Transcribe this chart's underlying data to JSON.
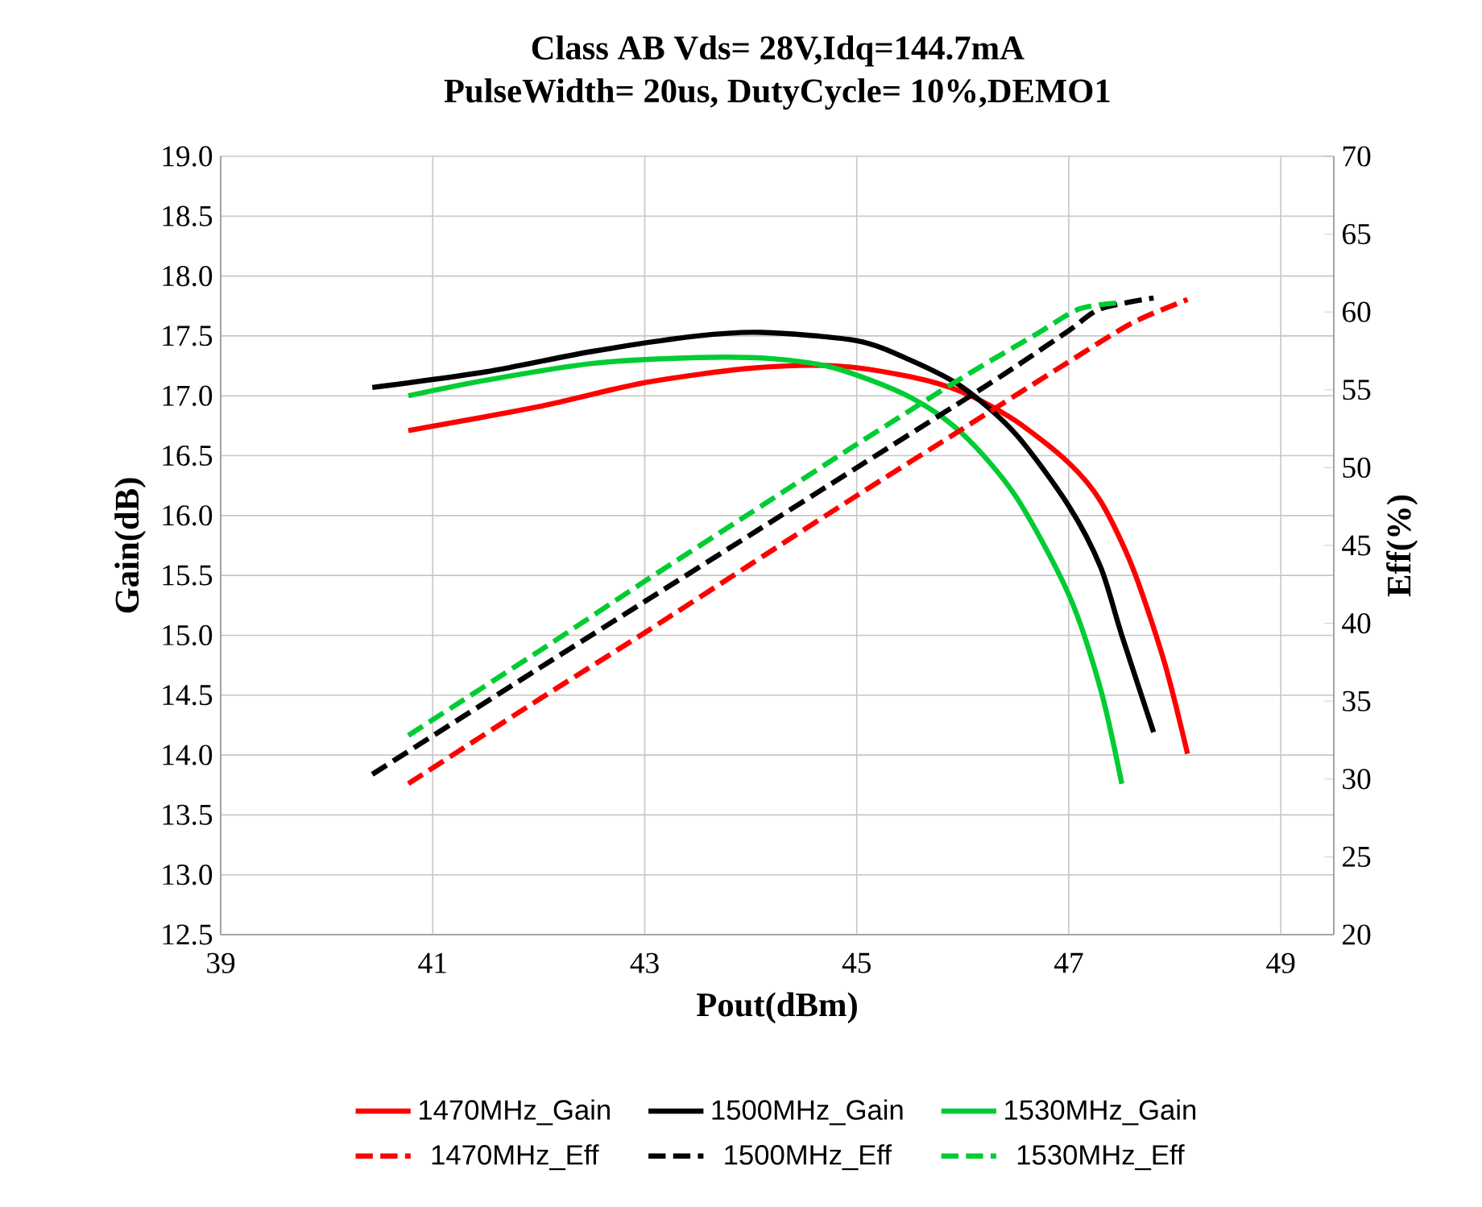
{
  "chart_data": {
    "type": "line",
    "title": "Class AB Vds= 28V,Idq=144.7mA",
    "subtitle": "PulseWidth= 20us, DutyCycle= 10%,DEMO1",
    "xlabel": "Pout(dBm)",
    "ylabel": "Gain(dB)",
    "y2label": "Eff(%)",
    "xlim": [
      39,
      49.5
    ],
    "xticks": [
      39,
      41,
      43,
      45,
      47,
      49
    ],
    "ylim": [
      12.5,
      19
    ],
    "yticks": [
      {
        "value": 12.5,
        "label": "12.5"
      },
      {
        "value": 13,
        "label": "13.0"
      },
      {
        "value": 13.5,
        "label": "13.5"
      },
      {
        "value": 14,
        "label": "14.0"
      },
      {
        "value": 14.5,
        "label": "14.5"
      },
      {
        "value": 15,
        "label": "15.0"
      },
      {
        "value": 15.5,
        "label": "15.5"
      },
      {
        "value": 16,
        "label": "16.0"
      },
      {
        "value": 16.5,
        "label": "16.5"
      },
      {
        "value": 17,
        "label": "17.0"
      },
      {
        "value": 17.5,
        "label": "17.5"
      },
      {
        "value": 18,
        "label": "18.0"
      },
      {
        "value": 18.5,
        "label": "18.5"
      },
      {
        "value": 19,
        "label": "19.0"
      }
    ],
    "y2lim": [
      20,
      70
    ],
    "y2ticks": [
      20,
      25,
      30,
      35,
      40,
      45,
      50,
      55,
      60,
      65,
      70
    ],
    "grid": true,
    "legend": "bottom",
    "marker": "none",
    "series": [
      {
        "name": "1470MHz_Gain",
        "color": "#ff0000",
        "line_style": "solid",
        "x": [
          40.77,
          42,
          43,
          44,
          44.8,
          45.5,
          46,
          46.5,
          47,
          47.3,
          47.6,
          47.9,
          48.12
        ],
        "values": [
          16.71,
          16.91,
          17.11,
          17.23,
          17.25,
          17.16,
          17.03,
          16.79,
          16.44,
          16.12,
          15.57,
          14.78,
          14.01
        ]
      },
      {
        "name": "1500MHz_Gain",
        "color": "#000000",
        "line_style": "solid",
        "x": [
          40.43,
          41.5,
          42.5,
          43.5,
          44.1,
          45,
          45.5,
          46,
          46.5,
          47,
          47.3,
          47.5,
          47.8
        ],
        "values": [
          17.07,
          17.2,
          17.37,
          17.5,
          17.53,
          17.46,
          17.3,
          17.07,
          16.68,
          16.08,
          15.57,
          15.0,
          14.19
        ]
      },
      {
        "name": "1530MHz_Gain",
        "color": "#00cc33",
        "line_style": "solid",
        "x": [
          40.77,
          41.5,
          42.5,
          43.5,
          44.2,
          44.8,
          45.5,
          46,
          46.5,
          47,
          47.3,
          47.5
        ],
        "values": [
          17.0,
          17.13,
          17.27,
          17.32,
          17.31,
          17.23,
          16.99,
          16.68,
          16.16,
          15.34,
          14.55,
          13.76
        ]
      },
      {
        "name": "1470MHz_Eff",
        "color": "#ff0000",
        "line_style": "dashed",
        "axis": "y2",
        "x": [
          40.77,
          42,
          43,
          44,
          45,
          46,
          47,
          47.6,
          48.12
        ],
        "values": [
          29.7,
          35.1,
          39.4,
          43.8,
          48.2,
          52.5,
          56.8,
          59.3,
          60.8
        ]
      },
      {
        "name": "1500MHz_Eff",
        "color": "#000000",
        "line_style": "dashed",
        "axis": "y2",
        "x": [
          40.43,
          42,
          43,
          44,
          45,
          46,
          46.5,
          47,
          47.3,
          47.8
        ],
        "values": [
          30.3,
          37.1,
          41.4,
          45.7,
          50.0,
          54.3,
          56.5,
          58.8,
          60.2,
          60.9
        ]
      },
      {
        "name": "1530MHz_Eff",
        "color": "#00cc33",
        "line_style": "dashed",
        "axis": "y2",
        "x": [
          40.77,
          42,
          43,
          44,
          45,
          46,
          46.7,
          47.1,
          47.5
        ],
        "values": [
          32.8,
          38.2,
          42.7,
          47.1,
          51.5,
          55.8,
          58.6,
          60.2,
          60.6
        ]
      }
    ]
  }
}
